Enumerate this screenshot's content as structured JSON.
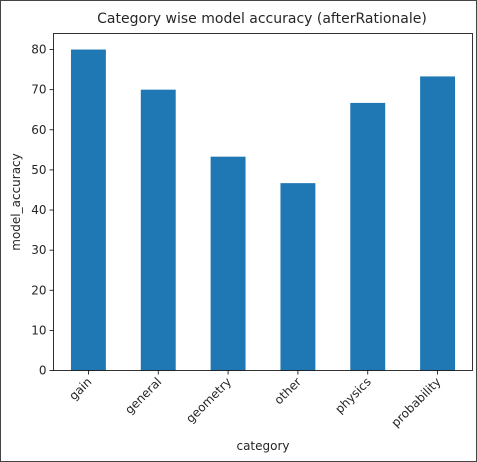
{
  "chart_data": {
    "type": "bar",
    "title": "Category wise model accuracy (afterRationale)",
    "xlabel": "category",
    "ylabel": "model_accuracy",
    "categories": [
      "gain",
      "general",
      "geometry",
      "other",
      "physics",
      "probability"
    ],
    "values": [
      80.0,
      70.0,
      53.3,
      46.7,
      66.7,
      73.3
    ],
    "ylim": [
      0,
      84
    ],
    "yticks": [
      0,
      10,
      20,
      30,
      40,
      50,
      60,
      70,
      80
    ],
    "bar_color": "#1f77b4",
    "grid": false,
    "legend": "none"
  }
}
